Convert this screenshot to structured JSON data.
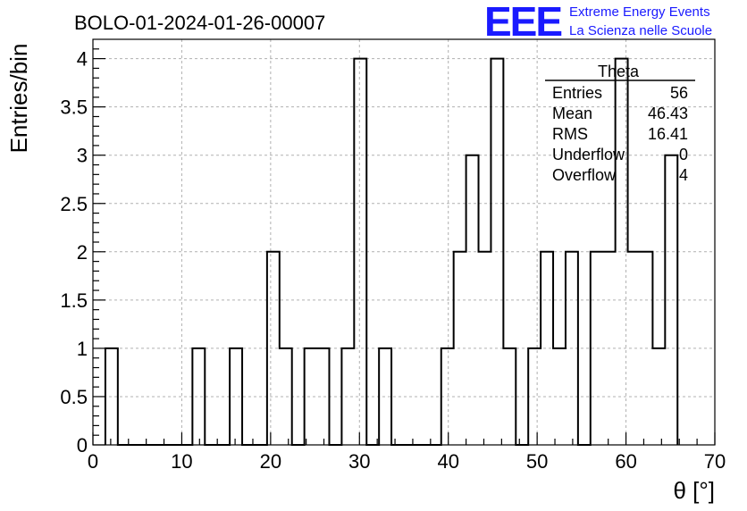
{
  "chart_data": {
    "type": "histogram",
    "title": "BOLO-01-2024-01-26-00007",
    "xlabel": "θ [°]",
    "ylabel": "Entries/bin",
    "xlim": [
      0,
      70
    ],
    "ylim": [
      0,
      4.2
    ],
    "x_ticks": [
      0,
      10,
      20,
      30,
      40,
      50,
      60,
      70
    ],
    "y_ticks": [
      0,
      0.5,
      1,
      1.5,
      2,
      2.5,
      3,
      3.5,
      4
    ],
    "y_tick_labels": [
      "0",
      "0.5",
      "1",
      "1.5",
      "2",
      "2.5",
      "3",
      "3.5",
      "4"
    ],
    "grid": true,
    "bin_width": 1.4,
    "bin_edges_start": 1.4,
    "values": [
      1,
      0,
      0,
      0,
      0,
      0,
      0,
      1,
      0,
      0,
      1,
      0,
      0,
      2,
      1,
      0,
      1,
      1,
      0,
      1,
      4,
      0,
      1,
      0,
      0,
      0,
      0,
      1,
      2,
      3,
      2,
      4,
      1,
      0,
      1,
      2,
      1,
      2,
      0,
      2,
      2,
      4,
      2,
      2,
      1,
      3
    ],
    "stats_box": {
      "name": "Theta",
      "rows": [
        {
          "label": "Entries",
          "value": "56"
        },
        {
          "label": "Mean",
          "value": "46.43"
        },
        {
          "label": "RMS",
          "value": "16.41"
        },
        {
          "label": "Underflow",
          "value": "0"
        },
        {
          "label": "Overflow",
          "value": "4"
        }
      ]
    }
  },
  "logo": {
    "mark": "EEE",
    "line1": "Extreme Energy Events",
    "line2": "La Scienza nelle Scuole",
    "color": "#1a1aff"
  }
}
